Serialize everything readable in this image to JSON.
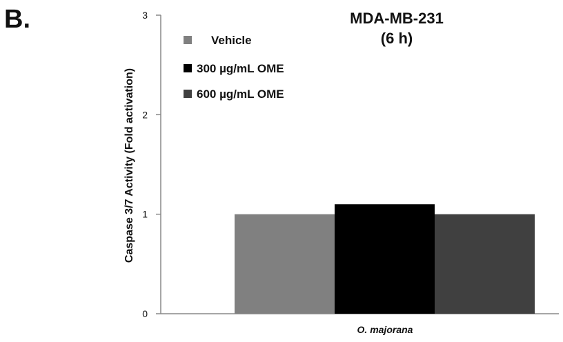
{
  "panel_label": "B.",
  "chart_data": {
    "type": "bar",
    "title": "MDA-MB-231",
    "subtitle": "(6 h)",
    "ylabel": "Caspase 3/7 Activity (Fold activation)",
    "xlabel": "",
    "categories": [
      "O. majorana"
    ],
    "ylim": [
      0,
      3
    ],
    "yticks": [
      "0",
      "1",
      "2",
      "3"
    ],
    "grid": false,
    "legend_position": "top-left",
    "series": [
      {
        "name": "Vehicle",
        "values": [
          1.0
        ],
        "color": "#808080"
      },
      {
        "name": "300 µg/mL OME",
        "values": [
          1.1
        ],
        "color": "#000000"
      },
      {
        "name": "600 µg/mL OME",
        "values": [
          1.0
        ],
        "color": "#404040"
      }
    ]
  }
}
